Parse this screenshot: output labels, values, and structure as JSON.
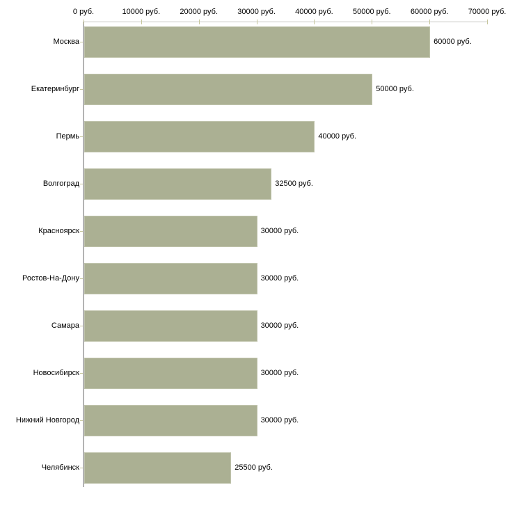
{
  "chart_data": {
    "type": "bar",
    "orientation": "horizontal",
    "title": "",
    "categories": [
      "Москва",
      "Екатеринбург",
      "Пермь",
      "Волгоград",
      "Красноярск",
      "Ростов-На-Дону",
      "Самара",
      "Новосибирск",
      "Нижний Новгород",
      "Челябинск"
    ],
    "values": [
      60000,
      50000,
      40000,
      32500,
      30000,
      30000,
      30000,
      30000,
      30000,
      25500
    ],
    "value_labels": [
      "60000 руб.",
      "50000 руб.",
      "40000 руб.",
      "32500 руб.",
      "30000 руб.",
      "30000 руб.",
      "30000 руб.",
      "30000 руб.",
      "30000 руб.",
      "25500 руб."
    ],
    "x_axis": {
      "position": "top",
      "xlim": [
        0,
        70000
      ],
      "ticks": [
        0,
        10000,
        20000,
        30000,
        40000,
        50000,
        60000,
        70000
      ],
      "tick_labels": [
        "0 руб.",
        "10000 руб.",
        "20000 руб.",
        "30000 руб.",
        "40000 руб.",
        "50000 руб.",
        "60000 руб.",
        "70000 руб."
      ]
    },
    "xlabel": "",
    "ylabel": "",
    "grid": false,
    "legend": false,
    "colors": {
      "bar_fill": "#abb093",
      "bar_border": "#bfc3ab",
      "x_axis_line": "#c6c6c0",
      "y_axis_line": "#b3b3b3",
      "tick_mark": "#c6c69c",
      "text": "#000000",
      "background": "#ffffff"
    }
  }
}
